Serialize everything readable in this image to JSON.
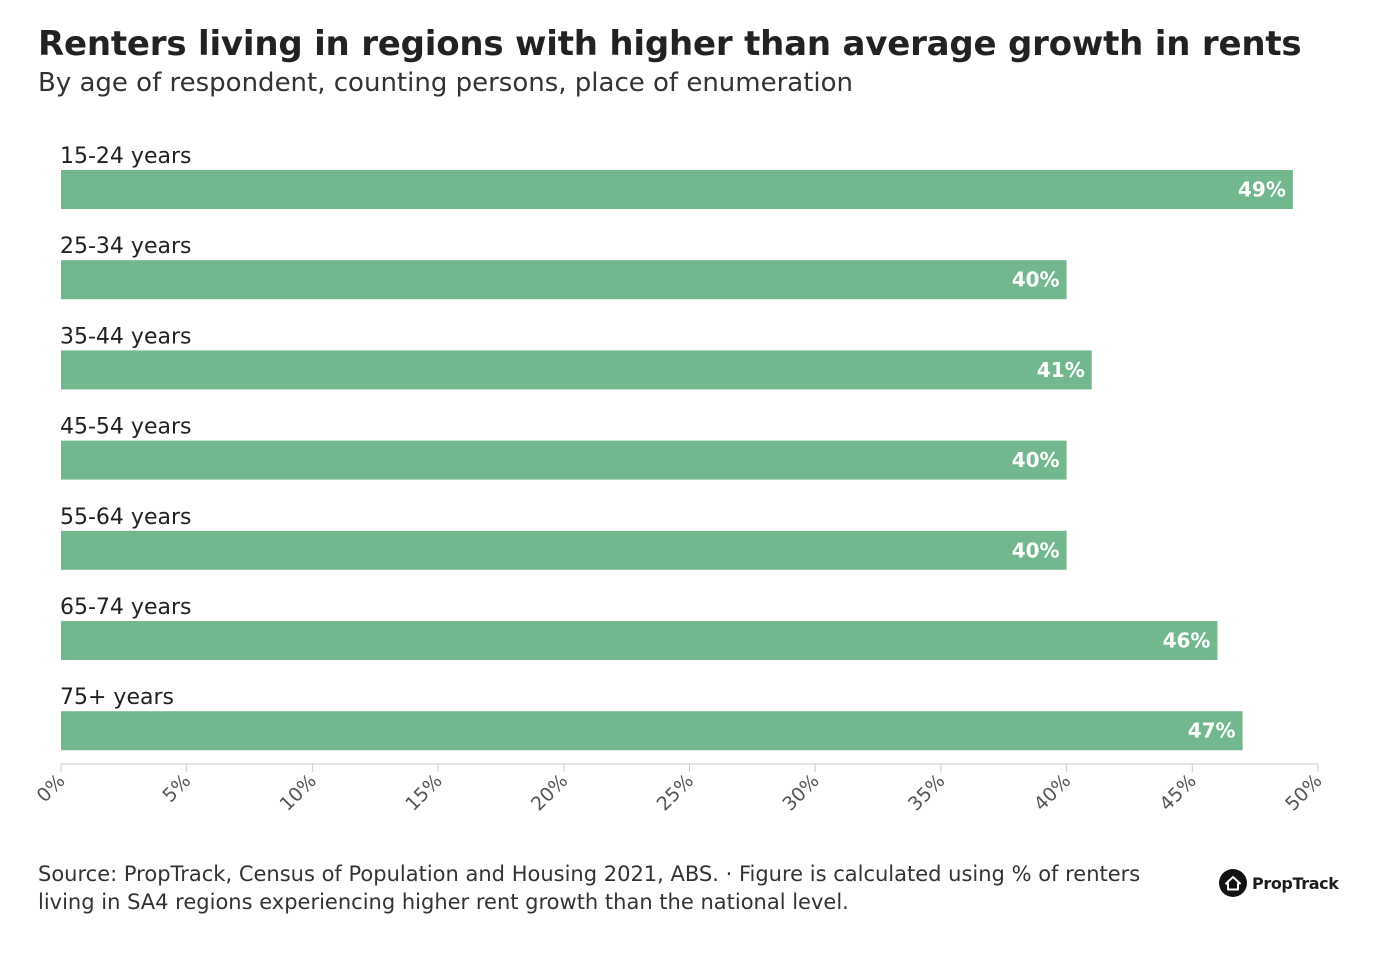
{
  "title": "Renters living in regions with higher than average growth in rents",
  "subtitle": "By age of respondent, counting persons, place of enumeration",
  "source": "Source: PropTrack, Census of Population and Housing 2021, ABS. · Figure is calculated using % of renters living in SA4 regions experiencing higher rent growth than the national level.",
  "brand": {
    "logo_text": "PropTrack"
  },
  "colors": {
    "bar": "#73b78f",
    "bar_label": "#ffffff",
    "text": "#222222",
    "axis": "#cccccc",
    "tick_label": "#555555"
  },
  "chart_data": {
    "type": "bar",
    "orientation": "horizontal",
    "categories": [
      "15-24 years",
      "25-34 years",
      "35-44 years",
      "45-54 years",
      "55-64 years",
      "65-74 years",
      "75+ years"
    ],
    "values": [
      49,
      40,
      41,
      40,
      40,
      46,
      47
    ],
    "data_labels": [
      "49%",
      "40%",
      "41%",
      "40%",
      "40%",
      "46%",
      "47%"
    ],
    "xlim": [
      0,
      50
    ],
    "xticks": [
      0,
      5,
      10,
      15,
      20,
      25,
      30,
      35,
      40,
      45,
      50
    ],
    "xtick_labels": [
      "0%",
      "5%",
      "10%",
      "15%",
      "20%",
      "25%",
      "30%",
      "35%",
      "40%",
      "45%",
      "50%"
    ],
    "grid": false,
    "legend": "none"
  }
}
